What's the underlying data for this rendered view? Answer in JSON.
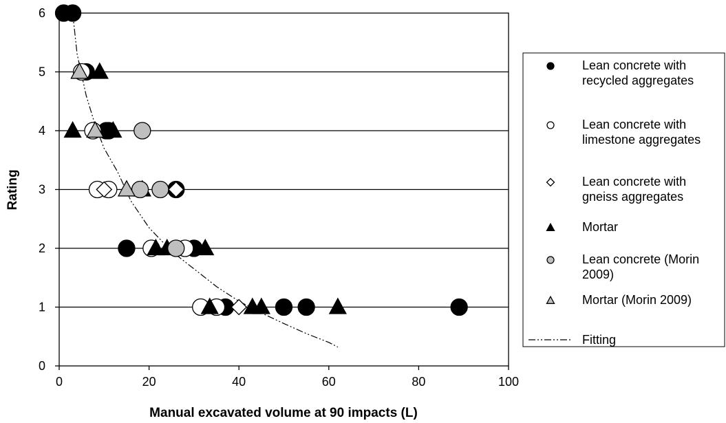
{
  "chart_data": {
    "type": "scatter",
    "title": "",
    "xlabel": "Manual excavated volume at 90 impacts (L)",
    "ylabel": "Rating",
    "xlim": [
      0,
      100
    ],
    "ylim": [
      0,
      6
    ],
    "x_ticks": [
      0,
      20,
      40,
      60,
      80,
      100
    ],
    "y_ticks": [
      0,
      1,
      2,
      3,
      4,
      5,
      6
    ],
    "grid": "horizontal",
    "legend_position": "right",
    "series": [
      {
        "name": "Lean concrete with recycled aggregates",
        "marker": "circle",
        "fill": "#000000",
        "points": [
          [
            1,
            6
          ],
          [
            3,
            6
          ],
          [
            6,
            5
          ],
          [
            10.5,
            4
          ],
          [
            11,
            4
          ],
          [
            26,
            3
          ],
          [
            15,
            2
          ],
          [
            30,
            2
          ],
          [
            37,
            1
          ],
          [
            50,
            1
          ],
          [
            55,
            1
          ],
          [
            89,
            1
          ]
        ]
      },
      {
        "name": "Lean concrete with limestone aggregates",
        "marker": "circle",
        "fill": "#ffffff",
        "points": [
          [
            5,
            5
          ],
          [
            7.5,
            4
          ],
          [
            8.5,
            3
          ],
          [
            11,
            3
          ],
          [
            20.5,
            2
          ],
          [
            28,
            2
          ],
          [
            31.5,
            1
          ],
          [
            35,
            1
          ]
        ]
      },
      {
        "name": "Lean concrete with gneiss aggregates",
        "marker": "diamond",
        "fill": "#ffffff",
        "points": [
          [
            10,
            3
          ],
          [
            26,
            3
          ],
          [
            40,
            1
          ]
        ]
      },
      {
        "name": "Mortar",
        "marker": "triangle",
        "fill": "#000000",
        "points": [
          [
            9,
            5
          ],
          [
            3,
            4
          ],
          [
            12,
            4
          ],
          [
            18.5,
            3
          ],
          [
            21.5,
            2
          ],
          [
            24,
            2
          ],
          [
            32.5,
            2
          ],
          [
            33.5,
            1
          ],
          [
            43,
            1
          ],
          [
            45,
            1
          ],
          [
            62,
            1
          ]
        ]
      },
      {
        "name": "Lean concrete (Morin 2009)",
        "marker": "circle",
        "fill": "#bfbfbf",
        "points": [
          [
            18.5,
            4
          ],
          [
            18,
            3
          ],
          [
            22.5,
            3
          ],
          [
            26,
            2
          ]
        ]
      },
      {
        "name": "Mortar (Morin 2009)",
        "marker": "triangle",
        "fill": "#bfbfbf",
        "points": [
          [
            4.5,
            5
          ],
          [
            8,
            4
          ],
          [
            15,
            3
          ]
        ]
      }
    ],
    "fit": {
      "name": "Fitting",
      "style": "dash-dot-dot",
      "points": [
        [
          3,
          6
        ],
        [
          4,
          5.3
        ],
        [
          6,
          4.6
        ],
        [
          8,
          4.1
        ],
        [
          10,
          3.7
        ],
        [
          13,
          3.3
        ],
        [
          16,
          2.8
        ],
        [
          20,
          2.35
        ],
        [
          25,
          1.95
        ],
        [
          30,
          1.65
        ],
        [
          35,
          1.35
        ],
        [
          40,
          1.1
        ],
        [
          45,
          0.9
        ],
        [
          50,
          0.72
        ],
        [
          55,
          0.55
        ],
        [
          60,
          0.4
        ],
        [
          62,
          0.32
        ]
      ]
    },
    "legend": {
      "entries": [
        {
          "lines": [
            "Lean concrete with",
            "recycled aggregates"
          ],
          "marker": "circle",
          "fill": "#000000"
        },
        {
          "lines": [
            "Lean concrete with",
            "limestone aggregates"
          ],
          "marker": "circle",
          "fill": "#ffffff"
        },
        {
          "lines": [
            "Lean concrete with",
            "gneiss aggregates"
          ],
          "marker": "diamond",
          "fill": "#ffffff"
        },
        {
          "lines": [
            "Mortar"
          ],
          "marker": "triangle",
          "fill": "#000000"
        },
        {
          "lines": [
            "Lean concrete (Morin",
            "2009)"
          ],
          "marker": "circle",
          "fill": "#bfbfbf"
        },
        {
          "lines": [
            "Mortar (Morin 2009)"
          ],
          "marker": "triangle",
          "fill": "#bfbfbf"
        },
        {
          "lines": [
            "Fitting"
          ],
          "marker": "fit-line",
          "fill": "none"
        }
      ]
    }
  }
}
